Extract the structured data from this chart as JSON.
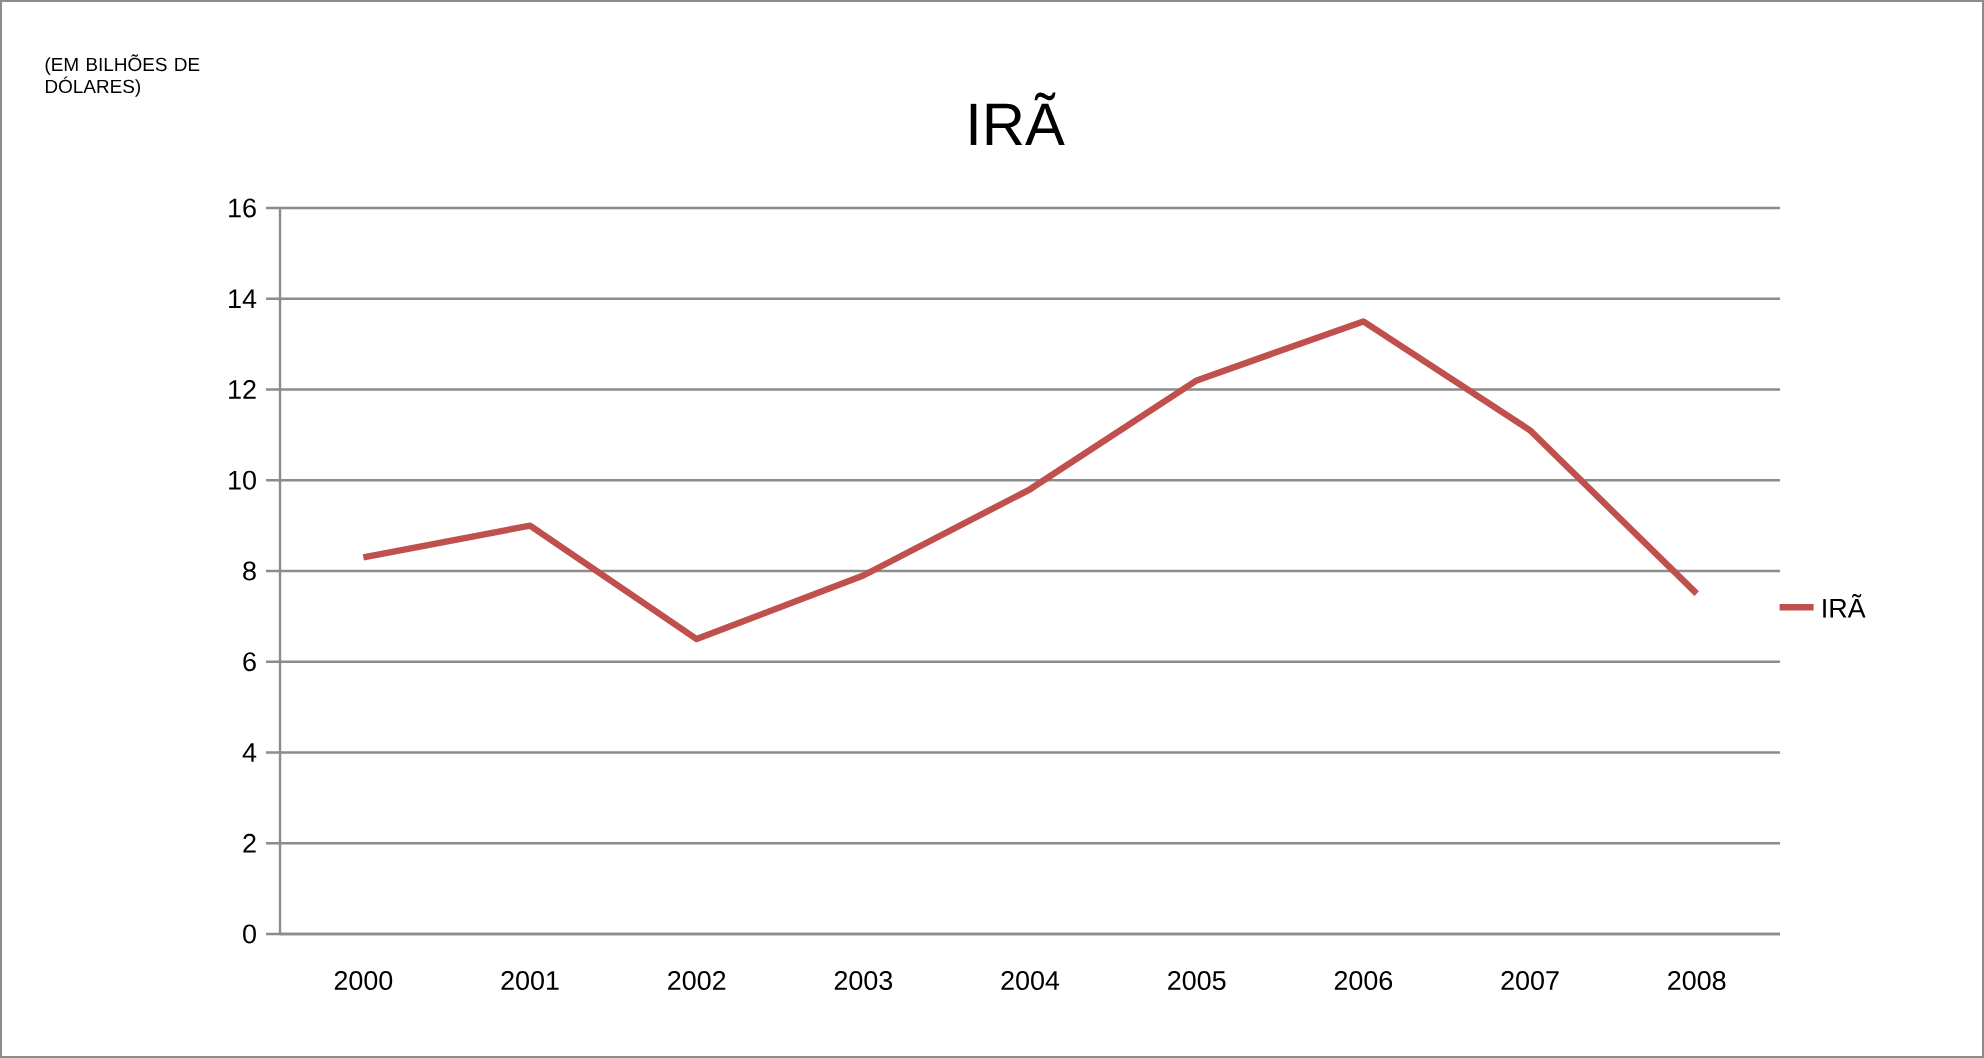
{
  "chart_data": {
    "type": "line",
    "title": "IRÃ",
    "annotations": [
      "(EM BILHÕES DE DÓLARES)"
    ],
    "categories": [
      "2000",
      "2001",
      "2002",
      "2003",
      "2004",
      "2005",
      "2006",
      "2007",
      "2008"
    ],
    "series": [
      {
        "name": "IRÃ",
        "color": "#c0504d",
        "values": [
          8.3,
          9.0,
          6.5,
          7.9,
          9.8,
          12.2,
          13.5,
          11.1,
          7.5
        ]
      }
    ],
    "ylim": [
      0,
      16
    ],
    "yticks": [
      0,
      2,
      4,
      6,
      8,
      10,
      12,
      14,
      16
    ],
    "grid": "y",
    "legend": "right",
    "marker": "none",
    "line_style": "solid"
  }
}
